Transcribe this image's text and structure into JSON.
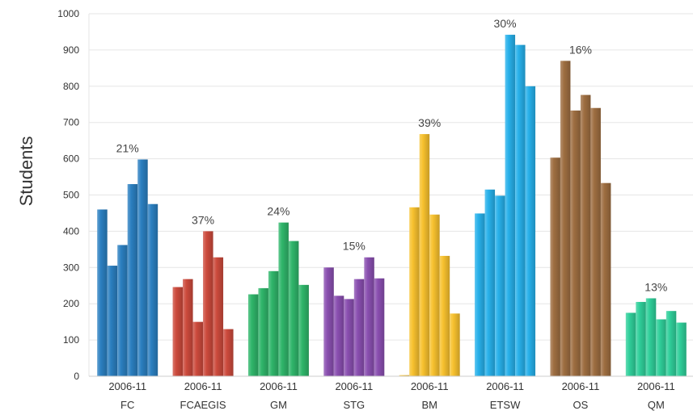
{
  "chart_data": {
    "type": "bar",
    "title": "",
    "xlabel": "",
    "ylabel": "Students",
    "ylim": [
      0,
      1000
    ],
    "yticks": [
      0,
      100,
      200,
      300,
      400,
      500,
      600,
      700,
      800,
      900,
      1000
    ],
    "grid": true,
    "legend": "none",
    "groups": [
      {
        "category": "FC",
        "period": "2006-11",
        "percent": "21%",
        "color": "#2b7fc0",
        "values": [
          460,
          305,
          362,
          530,
          598,
          475
        ]
      },
      {
        "category": "FCAEGIS",
        "period": "2006-11",
        "percent": "37%",
        "color": "#cc4a3c",
        "values": [
          246,
          268,
          150,
          400,
          328,
          130
        ]
      },
      {
        "category": "GM",
        "period": "2006-11",
        "percent": "24%",
        "color": "#2fb56a",
        "values": [
          226,
          243,
          290,
          424,
          373,
          252
        ]
      },
      {
        "category": "STG",
        "period": "2006-11",
        "percent": "15%",
        "color": "#8a4fb0",
        "values": [
          300,
          222,
          213,
          268,
          328,
          270
        ]
      },
      {
        "category": "BM",
        "period": "2006-11",
        "percent": "39%",
        "color": "#f7c12e",
        "values": [
          3,
          466,
          668,
          446,
          332,
          173
        ]
      },
      {
        "category": "ETSW",
        "period": "2006-11",
        "percent": "30%",
        "color": "#27b0ea",
        "values": [
          449,
          515,
          498,
          942,
          914,
          800
        ]
      },
      {
        "category": "OS",
        "period": "2006-11",
        "percent": "16%",
        "color": "#9e6e41",
        "values": [
          603,
          870,
          733,
          776,
          740,
          533
        ]
      },
      {
        "category": "QM",
        "period": "2006-11",
        "percent": "13%",
        "color": "#2fcf9a",
        "values": [
          175,
          205,
          215,
          157,
          180,
          148
        ]
      }
    ]
  }
}
